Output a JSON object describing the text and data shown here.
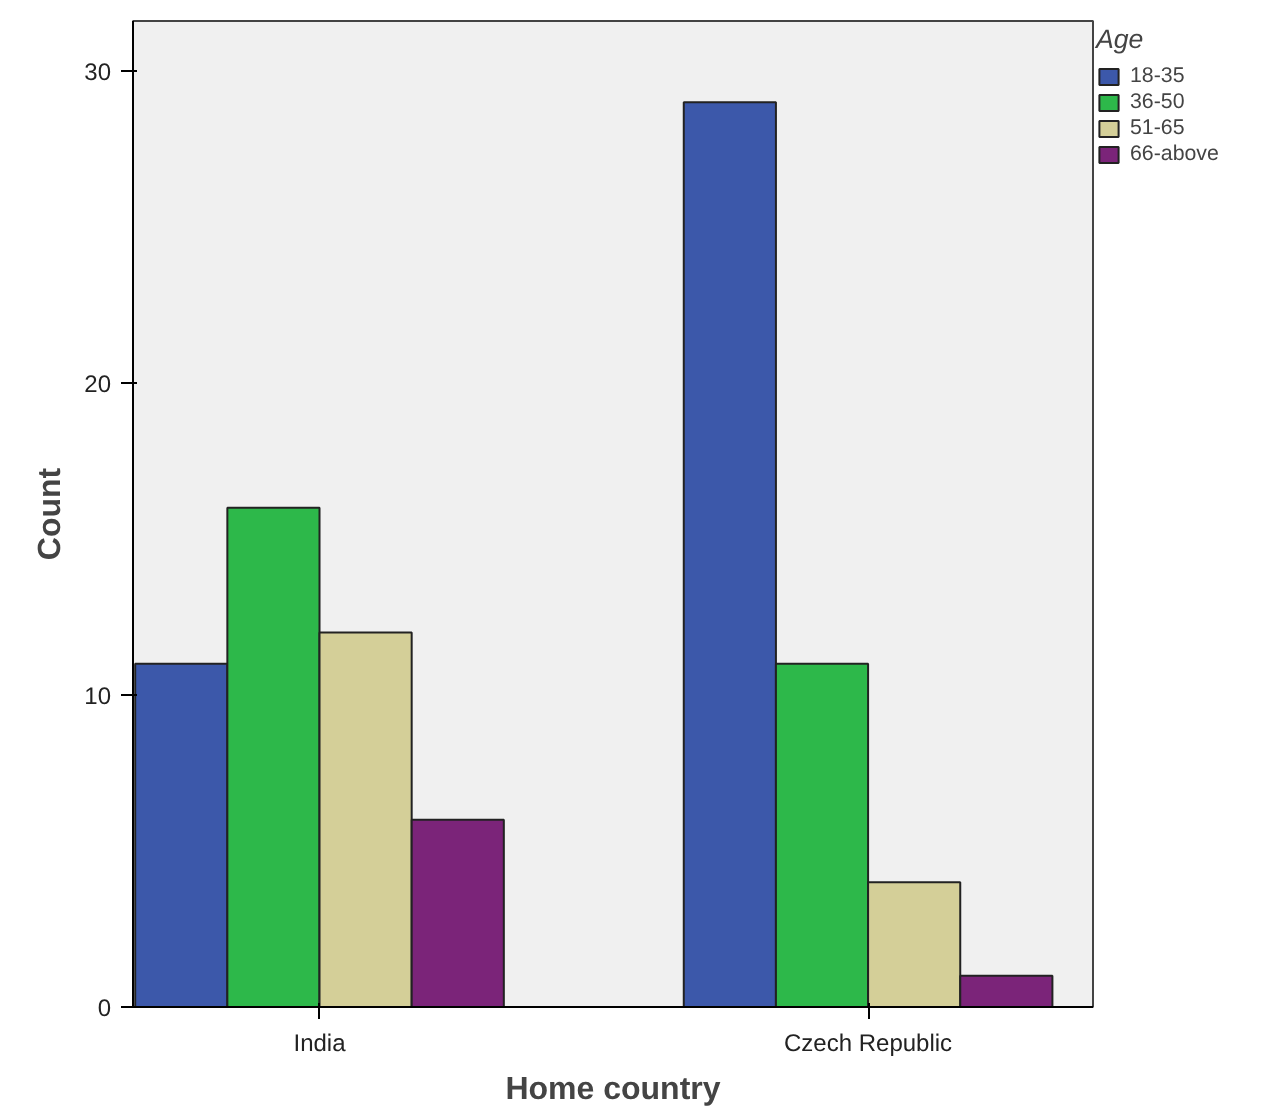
{
  "chart_data": {
    "type": "bar",
    "xlabel": "Home country",
    "ylabel": "Count",
    "legend_title": "Age",
    "categories": [
      "India",
      "Czech Republic"
    ],
    "series": [
      {
        "name": "18-35",
        "color": "#3c58aa",
        "values": [
          11,
          29
        ]
      },
      {
        "name": "36-50",
        "color": "#2db84a",
        "values": [
          16,
          11
        ]
      },
      {
        "name": "51-65",
        "color": "#d4cf98",
        "values": [
          12,
          4
        ]
      },
      {
        "name": "66-above",
        "color": "#7b2479",
        "values": [
          6,
          1
        ]
      }
    ],
    "ylim": [
      0,
      31.6
    ],
    "yticks": [
      0,
      10,
      20,
      30
    ],
    "grid": false,
    "legend": "top right"
  }
}
